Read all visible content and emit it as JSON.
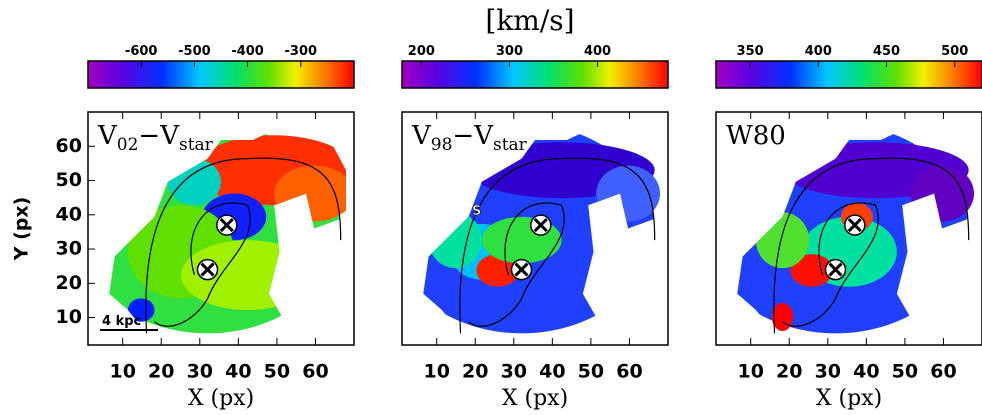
{
  "chart_data": [
    {
      "type": "velocity-map",
      "title": [
        "V",
        "02",
        "−V",
        "star"
      ],
      "xlabel": "X (px)",
      "ylabel": "Y (px)",
      "xlim": [
        1,
        70
      ],
      "ylim": [
        2,
        70
      ],
      "xticks": [
        10,
        20,
        30,
        40,
        50,
        60
      ],
      "yticks": [
        10,
        20,
        30,
        40,
        50,
        60
      ],
      "clim": [
        -700,
        -200
      ],
      "cticks": [
        -600,
        -500,
        -400,
        -300
      ],
      "markers": [
        {
          "x": 37,
          "y": 37
        },
        {
          "x": 32,
          "y": 24
        }
      ],
      "scale_label": "4 kpc"
    },
    {
      "type": "velocity-map",
      "title": [
        "V",
        "98",
        "−V",
        "star"
      ],
      "colorbar_label": "[km/s]",
      "xlabel": "X (px)",
      "xlim": [
        1,
        70
      ],
      "ylim": [
        2,
        70
      ],
      "xticks": [
        10,
        20,
        30,
        40,
        50,
        60
      ],
      "clim": [
        178,
        480
      ],
      "cticks": [
        200,
        300,
        400
      ],
      "markers": [
        {
          "x": 37,
          "y": 37
        },
        {
          "x": 32,
          "y": 24
        }
      ],
      "annotation": "S"
    },
    {
      "type": "velocity-map",
      "title": [
        "W80"
      ],
      "xlabel": "X (px)",
      "xlim": [
        1,
        70
      ],
      "ylim": [
        2,
        70
      ],
      "xticks": [
        10,
        20,
        30,
        40,
        50,
        60
      ],
      "clim": [
        325,
        520
      ],
      "cticks": [
        350,
        400,
        450,
        500
      ],
      "markers": [
        {
          "x": 37,
          "y": 37
        },
        {
          "x": 32,
          "y": 24
        }
      ]
    }
  ]
}
